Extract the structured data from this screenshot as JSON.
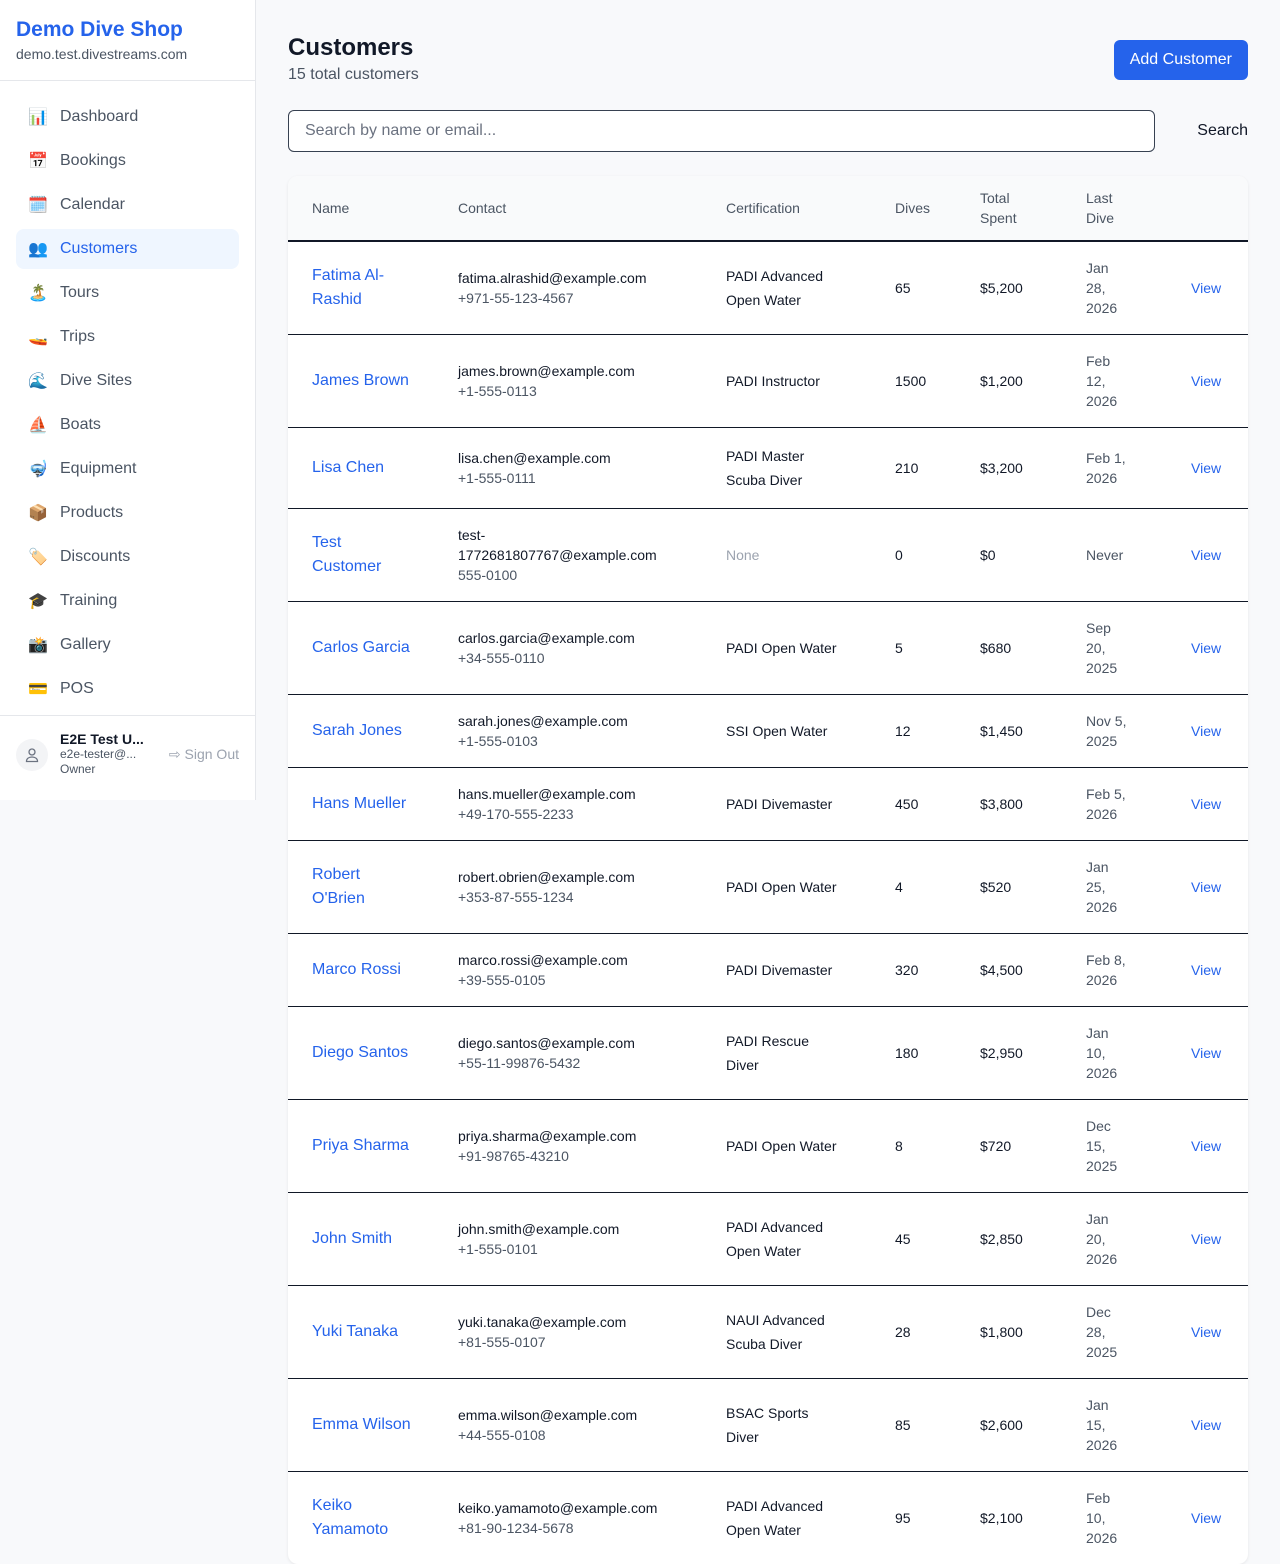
{
  "brand": {
    "name": "Demo Dive Shop",
    "domain": "demo.test.divestreams.com"
  },
  "nav": [
    {
      "label": "Dashboard",
      "icon": "📊",
      "name": "dashboard"
    },
    {
      "label": "Bookings",
      "icon": "📅",
      "name": "bookings"
    },
    {
      "label": "Calendar",
      "icon": "🗓️",
      "name": "calendar"
    },
    {
      "label": "Customers",
      "icon": "👥",
      "name": "customers",
      "active": true
    },
    {
      "label": "Tours",
      "icon": "🏝️",
      "name": "tours"
    },
    {
      "label": "Trips",
      "icon": "🚤",
      "name": "trips"
    },
    {
      "label": "Dive Sites",
      "icon": "🌊",
      "name": "dive-sites"
    },
    {
      "label": "Boats",
      "icon": "⛵",
      "name": "boats"
    },
    {
      "label": "Equipment",
      "icon": "🤿",
      "name": "equipment"
    },
    {
      "label": "Products",
      "icon": "📦",
      "name": "products"
    },
    {
      "label": "Discounts",
      "icon": "🏷️",
      "name": "discounts"
    },
    {
      "label": "Training",
      "icon": "🎓",
      "name": "training"
    },
    {
      "label": "Gallery",
      "icon": "📸",
      "name": "gallery"
    },
    {
      "label": "POS",
      "icon": "💳",
      "name": "pos"
    }
  ],
  "user": {
    "name": "E2E Test U...",
    "email": "e2e-tester@...",
    "role": "Owner",
    "sign_out": "Sign Out"
  },
  "page": {
    "title": "Customers",
    "subtitle": "15 total customers",
    "add_button": "Add Customer",
    "search_placeholder": "Search by name or email...",
    "search_button": "Search"
  },
  "table": {
    "headers": [
      "Name",
      "Contact",
      "Certification",
      "Dives",
      "Total Spent",
      "Last Dive",
      ""
    ],
    "rows": [
      {
        "name": "Fatima Al-Rashid",
        "email": "fatima.alrashid@example.com",
        "phone": "+971-55-123-4567",
        "cert": "PADI Advanced Open Water",
        "dives": "65",
        "spent": "$5,200",
        "last": "Jan 28, 2026",
        "action": "View"
      },
      {
        "name": "James Brown",
        "email": "james.brown@example.com",
        "phone": "+1-555-0113",
        "cert": "PADI Instructor",
        "dives": "1500",
        "spent": "$1,200",
        "last": "Feb 12, 2026",
        "action": "View"
      },
      {
        "name": "Lisa Chen",
        "email": "lisa.chen@example.com",
        "phone": "+1-555-0111",
        "cert": "PADI Master Scuba Diver",
        "dives": "210",
        "spent": "$3,200",
        "last": "Feb 1, 2026",
        "action": "View"
      },
      {
        "name": "Test Customer",
        "email": "test-1772681807767@example.com",
        "phone": "555-0100",
        "cert": "None",
        "dives": "0",
        "spent": "$0",
        "last": "Never",
        "action": "View"
      },
      {
        "name": "Carlos Garcia",
        "email": "carlos.garcia@example.com",
        "phone": "+34-555-0110",
        "cert": "PADI Open Water",
        "dives": "5",
        "spent": "$680",
        "last": "Sep 20, 2025",
        "action": "View"
      },
      {
        "name": "Sarah Jones",
        "email": "sarah.jones@example.com",
        "phone": "+1-555-0103",
        "cert": "SSI Open Water",
        "dives": "12",
        "spent": "$1,450",
        "last": "Nov 5, 2025",
        "action": "View"
      },
      {
        "name": "Hans Mueller",
        "email": "hans.mueller@example.com",
        "phone": "+49-170-555-2233",
        "cert": "PADI Divemaster",
        "dives": "450",
        "spent": "$3,800",
        "last": "Feb 5, 2026",
        "action": "View"
      },
      {
        "name": "Robert O'Brien",
        "email": "robert.obrien@example.com",
        "phone": "+353-87-555-1234",
        "cert": "PADI Open Water",
        "dives": "4",
        "spent": "$520",
        "last": "Jan 25, 2026",
        "action": "View"
      },
      {
        "name": "Marco Rossi",
        "email": "marco.rossi@example.com",
        "phone": "+39-555-0105",
        "cert": "PADI Divemaster",
        "dives": "320",
        "spent": "$4,500",
        "last": "Feb 8, 2026",
        "action": "View"
      },
      {
        "name": "Diego Santos",
        "email": "diego.santos@example.com",
        "phone": "+55-11-99876-5432",
        "cert": "PADI Rescue Diver",
        "dives": "180",
        "spent": "$2,950",
        "last": "Jan 10, 2026",
        "action": "View"
      },
      {
        "name": "Priya Sharma",
        "email": "priya.sharma@example.com",
        "phone": "+91-98765-43210",
        "cert": "PADI Open Water",
        "dives": "8",
        "spent": "$720",
        "last": "Dec 15, 2025",
        "action": "View"
      },
      {
        "name": "John Smith",
        "email": "john.smith@example.com",
        "phone": "+1-555-0101",
        "cert": "PADI Advanced Open Water",
        "dives": "45",
        "spent": "$2,850",
        "last": "Jan 20, 2026",
        "action": "View"
      },
      {
        "name": "Yuki Tanaka",
        "email": "yuki.tanaka@example.com",
        "phone": "+81-555-0107",
        "cert": "NAUI Advanced Scuba Diver",
        "dives": "28",
        "spent": "$1,800",
        "last": "Dec 28, 2025",
        "action": "View"
      },
      {
        "name": "Emma Wilson",
        "email": "emma.wilson@example.com",
        "phone": "+44-555-0108",
        "cert": "BSAC Sports Diver",
        "dives": "85",
        "spent": "$2,600",
        "last": "Jan 15, 2026",
        "action": "View"
      },
      {
        "name": "Keiko Yamamoto",
        "email": "keiko.yamamoto@example.com",
        "phone": "+81-90-1234-5678",
        "cert": "PADI Advanced Open Water",
        "dives": "95",
        "spent": "$2,100",
        "last": "Feb 10, 2026",
        "action": "View"
      }
    ]
  }
}
